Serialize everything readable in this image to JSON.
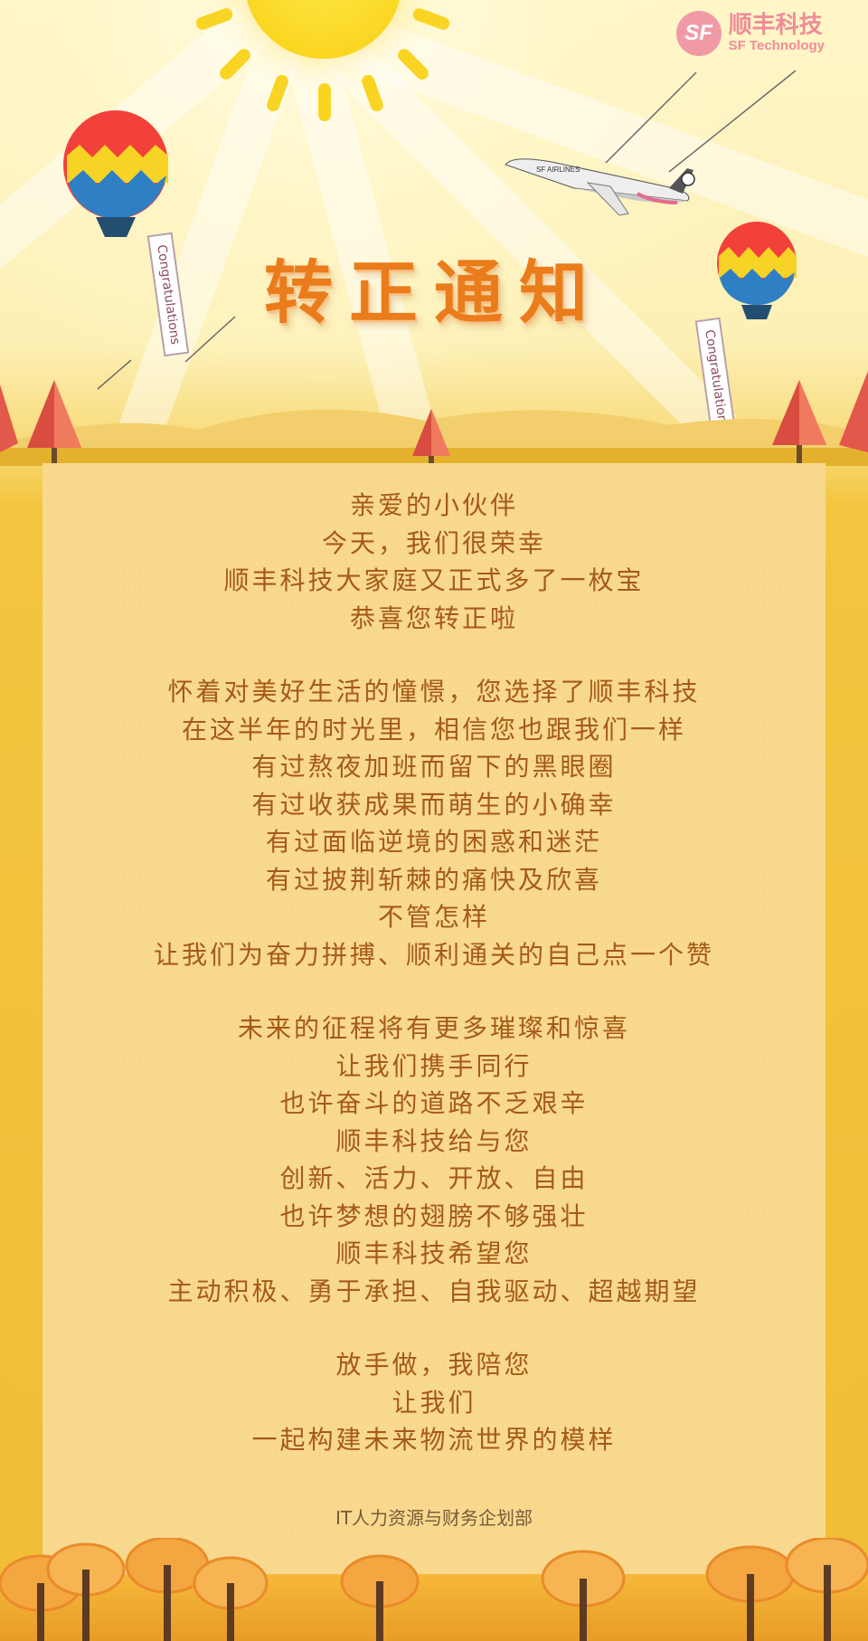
{
  "brand": {
    "logo_mark": "SF",
    "name_cn": "顺丰科技",
    "name_en": "SF Technology"
  },
  "title": "转正通知",
  "balloons": [
    {
      "ribbon": "Congratulations"
    },
    {
      "ribbon": "Congratulations"
    }
  ],
  "airplane": {
    "livery": "SF AIRLINES"
  },
  "letter": {
    "stanza1": [
      "亲爱的小伙伴",
      "今天，我们很荣幸",
      "顺丰科技大家庭又正式多了一枚宝",
      "恭喜您转正啦"
    ],
    "stanza2": [
      "怀着对美好生活的憧憬，您选择了顺丰科技",
      "在这半年的时光里，相信您也跟我们一样",
      "有过熬夜加班而留下的黑眼圈",
      "有过收获成果而萌生的小确幸",
      "有过面临逆境的困惑和迷茫",
      "有过披荆斩棘的痛快及欣喜",
      "不管怎样",
      "让我们为奋力拼搏、顺利通关的自己点一个赞"
    ],
    "stanza3": [
      "未来的征程将有更多璀璨和惊喜",
      "让我们携手同行",
      "也许奋斗的道路不乏艰辛",
      "顺丰科技给与您",
      "创新、活力、开放、自由",
      "也许梦想的翅膀不够强壮",
      "顺丰科技希望您",
      "主动积极、勇于承担、自我驱动、超越期望"
    ],
    "stanza4": [
      "放手做，我陪您",
      "让我们",
      "一起构建未来物流世界的模样"
    ]
  },
  "signature": "IT人力资源与财务企划部",
  "colors": {
    "title": "#ea7c1c",
    "text": "#a55a1a",
    "panel": "#f8d88c",
    "border": "#f0bd36",
    "logo": "#f08c98"
  }
}
